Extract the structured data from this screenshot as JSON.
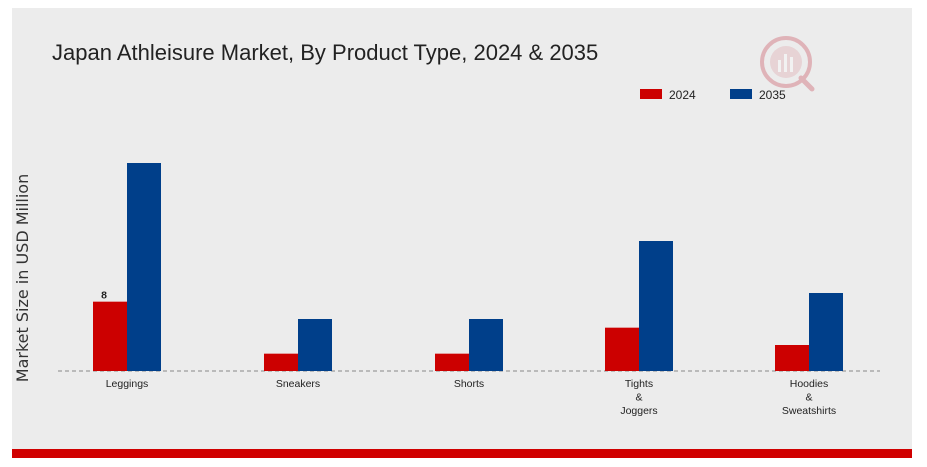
{
  "chart_data": {
    "type": "bar",
    "title": "Japan Athleisure Market, By Product Type, 2024 & 2035",
    "xlabel": "",
    "ylabel": "Market Size in USD Million",
    "categories": [
      [
        "Leggings"
      ],
      [
        "Sneakers"
      ],
      [
        "Shorts"
      ],
      [
        "Tights",
        "&",
        "Joggers"
      ],
      [
        "Hoodies",
        "&",
        "Sweatshirts"
      ]
    ],
    "series": [
      {
        "name": "2024",
        "color": "#cc0000",
        "values": [
          8,
          2,
          2,
          5,
          3
        ]
      },
      {
        "name": "2035",
        "color": "#003f8a",
        "values": [
          24,
          6,
          6,
          15,
          9
        ]
      }
    ],
    "data_labels": [
      {
        "series": 0,
        "index": 0,
        "text": "8"
      }
    ],
    "ylim": [
      0,
      30
    ],
    "grid": false,
    "legend": "top-right"
  },
  "watermark_icon": "brand-logo-icon"
}
